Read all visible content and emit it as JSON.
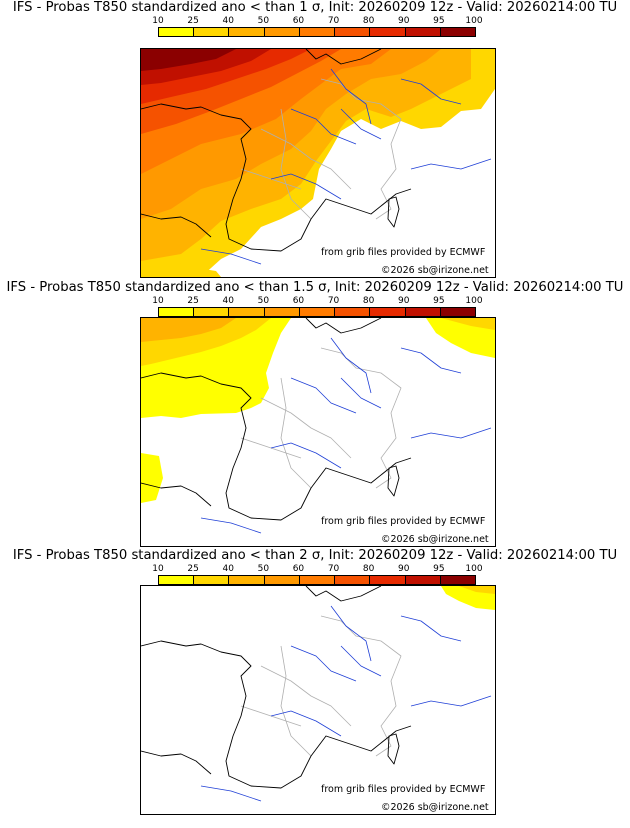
{
  "colorbar": {
    "ticks": [
      "10",
      "25",
      "40",
      "50",
      "60",
      "70",
      "80",
      "90",
      "95",
      "100"
    ],
    "colors": [
      "#ffff00",
      "#ffd700",
      "#ffb300",
      "#ff9900",
      "#ff7b00",
      "#f55200",
      "#e62a00",
      "#c01000",
      "#8b0000"
    ]
  },
  "panels": [
    {
      "title": "IFS - Probas T850  standardized ano < than 1 σ, Init: 20260209 12z - Valid: 20260214:00 TU",
      "credit": "from grib files provided by ECMWF",
      "copyright": "©2026 sb@irizone.net"
    },
    {
      "title": "IFS - Probas T850  standardized ano < than 1.5 σ, Init: 20260209 12z - Valid: 20260214:00 TU",
      "credit": "from grib files provided by ECMWF",
      "copyright": "©2026 sb@irizone.net"
    },
    {
      "title": "IFS - Probas T850  standardized ano < than 2 σ, Init: 20260209 12z - Valid: 20260214:00 TU",
      "credit": "from grib files provided by ECMWF",
      "copyright": "©2026 sb@irizone.net"
    }
  ],
  "legend_colors": {
    "coast": "#000000",
    "rivers": "#1f3fd6",
    "borders": "#b0b0b0"
  }
}
